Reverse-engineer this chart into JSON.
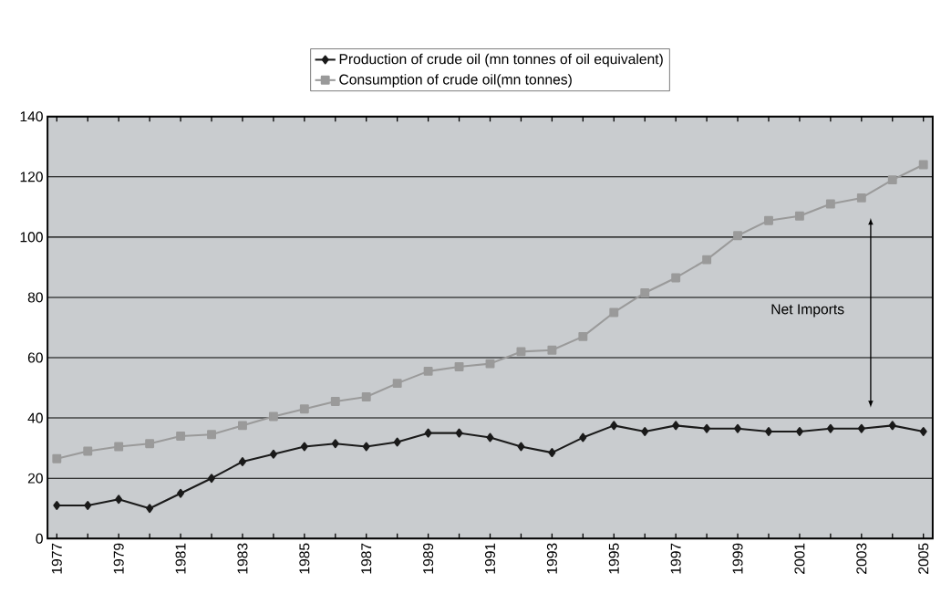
{
  "chart_data": {
    "type": "line",
    "categories": [
      "1977",
      null,
      "1979",
      null,
      "1981",
      null,
      "1983",
      null,
      "1985",
      null,
      "1987",
      null,
      "1989",
      null,
      "1991",
      null,
      "1993",
      null,
      "1995",
      null,
      "1997",
      null,
      "1999",
      null,
      "2001",
      null,
      "2003",
      null,
      "2005"
    ],
    "series": [
      {
        "name": "Production of crude oil (mn tonnes of oil equivalent)",
        "color": "#1a1a1a",
        "marker": "diamond",
        "values": [
          11,
          11,
          13,
          10,
          15,
          20,
          25.5,
          28,
          30.5,
          31.5,
          30.5,
          32,
          35,
          35,
          33.5,
          30.5,
          28.5,
          33.5,
          37.5,
          35.5,
          37.5,
          36.5,
          36.5,
          35.5,
          35.5,
          36.5,
          36.5,
          37.5,
          35.5
        ]
      },
      {
        "name": "Consumption of crude oil(mn tonnes)",
        "color": "#9a9a9a",
        "marker": "square",
        "values": [
          26.5,
          29,
          30.5,
          31.5,
          34,
          34.5,
          37.5,
          40.5,
          43,
          45.5,
          47,
          51.5,
          55.5,
          57,
          58,
          62,
          62.5,
          67,
          75,
          81.5,
          86.5,
          92.5,
          100.5,
          105.5,
          107,
          111,
          113,
          119,
          124
        ]
      }
    ],
    "ylim": [
      0,
      140
    ],
    "yticks": [
      0,
      20,
      40,
      60,
      80,
      100,
      120,
      140
    ],
    "grid": "y",
    "legend": "top",
    "line_style": "solid",
    "annotations": [
      "Net Imports"
    ]
  }
}
